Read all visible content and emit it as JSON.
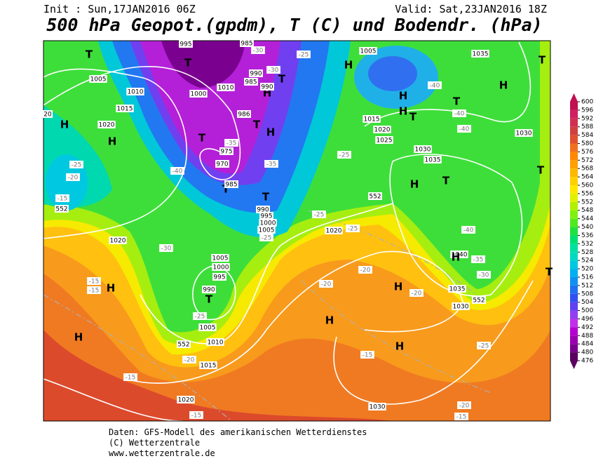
{
  "header": {
    "init": "Init : Sun,17JAN2016 06Z",
    "valid": "Valid: Sat,23JAN2016 18Z",
    "title": "500 hPa Geopot.(gpdm), T (C) und Bodendr. (hPa)"
  },
  "colorbar": {
    "ticks": [
      476,
      480,
      484,
      488,
      492,
      496,
      500,
      504,
      508,
      512,
      516,
      520,
      524,
      528,
      532,
      536,
      540,
      544,
      548,
      552,
      556,
      560,
      564,
      568,
      572,
      576,
      580,
      584,
      588,
      592,
      596,
      600
    ],
    "colors": [
      "#5a0060",
      "#7a0090",
      "#9a00b0",
      "#b400d0",
      "#c030e8",
      "#9040f0",
      "#6040f0",
      "#3050f0",
      "#2070f0",
      "#1090f0",
      "#00b0f0",
      "#00c8e0",
      "#00d8c0",
      "#00e0a0",
      "#00e070",
      "#20e040",
      "#50e820",
      "#80f010",
      "#b0f000",
      "#e0f000",
      "#ffe800",
      "#ffd000",
      "#ffb800",
      "#ffa000",
      "#ff8800",
      "#f07020",
      "#e05030",
      "#d04040",
      "#d03050",
      "#d02060",
      "#c01050"
    ]
  },
  "map_labels": [
    "T",
    "T",
    "995",
    "985",
    "-30",
    "1005",
    "1035",
    "H",
    "H",
    "H",
    "1010",
    "990",
    "985",
    "990",
    "T",
    "-30",
    "-25",
    "1005",
    "1010",
    "1000",
    "1015",
    "H",
    "1020",
    "H",
    "986",
    "T",
    "H",
    "T",
    "-35",
    "975",
    "970",
    "-40",
    "T",
    "985",
    "-35",
    "T",
    "990",
    "995",
    "1000",
    "1005",
    "-25",
    "-25",
    "1020",
    "-25",
    "552",
    "-25",
    "1015",
    "1020",
    "1025",
    "1030",
    "1035",
    "H",
    "H",
    "T",
    "T",
    "-40",
    "-40",
    "-40",
    "1030",
    "T",
    "T",
    "H",
    "T",
    "-40",
    "1040",
    "H",
    "-35",
    "-30",
    "T",
    "1035",
    "1030",
    "552",
    "-25",
    "-20",
    "-15",
    "552",
    "20",
    "1020",
    "-30",
    "H",
    "-15",
    "-15",
    "1005",
    "1000",
    "995",
    "990",
    "T",
    "-25",
    "1005",
    "552",
    "1010",
    "-20",
    "1015",
    "H",
    "-15",
    "1020",
    "-15",
    "H",
    "-15",
    "-20",
    "-20",
    "H",
    "-20",
    "H",
    "1030",
    "-25",
    "-20",
    "-15"
  ],
  "footer": [
    "Daten: GFS-Modell des amerikanischen Wetterdienstes",
    "(C) Wetterzentrale",
    "www.wetterzentrale.de"
  ]
}
